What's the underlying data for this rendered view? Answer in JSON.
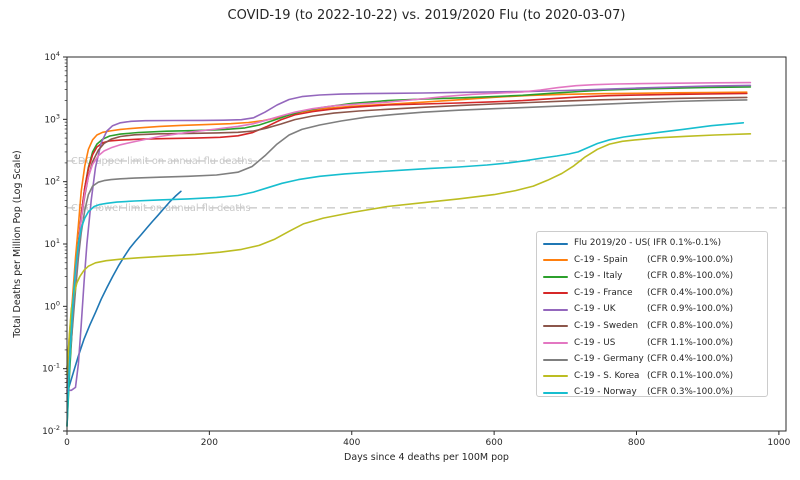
{
  "chart_data": {
    "type": "line",
    "title": "COVID-19 (to 2022-10-22) vs. 2019/2020 Flu (to 2020-03-07)",
    "xlabel": "Days since 4 deaths per 100M pop",
    "ylabel": "Total Deaths per Million Pop (Log Scale)",
    "grid": false,
    "legend_position": "lower right",
    "x_axis": {
      "min": 0,
      "max": 1010,
      "ticks": [
        0,
        200,
        400,
        600,
        800,
        1000
      ]
    },
    "y_axis": {
      "scale": "log",
      "min": 0.01,
      "max": 10000,
      "tick_exponents": [
        -2,
        -1,
        0,
        1,
        2,
        3,
        4
      ]
    },
    "annotations": [
      {
        "label": "CDC upper limit on annual flu deaths",
        "value": 215,
        "style": "dashed",
        "line_color": "#d2d2d2",
        "text_color": "#c9c9c9"
      },
      {
        "label": "CDC lower limit on annual flu deaths",
        "value": 38,
        "style": "dashed",
        "line_color": "#d2d2d2",
        "text_color": "#c9c9c9"
      }
    ],
    "series": [
      {
        "name": "Flu 2019/20 - US",
        "cfr": "( IFR 0.1%-0.1%)",
        "color": "#1f77b4",
        "x": [
          0,
          8,
          16,
          24,
          32,
          40,
          48,
          56,
          64,
          72,
          80,
          88,
          96,
          104,
          112,
          120,
          128,
          136,
          144,
          152,
          160
        ],
        "y": [
          0.04,
          0.08,
          0.16,
          0.3,
          0.5,
          0.8,
          1.3,
          2.0,
          3.0,
          4.4,
          6.2,
          8.5,
          11,
          14,
          18,
          23,
          29,
          37,
          47,
          58,
          70
        ]
      },
      {
        "name": "C-19 - Spain",
        "cfr": "(CFR 0.9%-100.0%)",
        "color": "#ff7f0e",
        "x": [
          0,
          4,
          8,
          12,
          16,
          20,
          25,
          30,
          36,
          42,
          50,
          60,
          75,
          100,
          130,
          160,
          200,
          230,
          255,
          275,
          295,
          315,
          335,
          360,
          400,
          450,
          500,
          550,
          600,
          650,
          700,
          750,
          800,
          850,
          900,
          955
        ],
        "y": [
          0.1,
          0.4,
          1.5,
          6,
          20,
          70,
          180,
          330,
          470,
          560,
          620,
          650,
          690,
          730,
          770,
          800,
          830,
          850,
          890,
          950,
          1060,
          1200,
          1340,
          1480,
          1620,
          1740,
          1880,
          2060,
          2260,
          2420,
          2520,
          2580,
          2620,
          2660,
          2690,
          2720
        ]
      },
      {
        "name": "C-19 - Italy",
        "cfr": "(CFR 0.8%-100.0%)",
        "color": "#2ca02c",
        "x": [
          0,
          4,
          8,
          12,
          16,
          20,
          25,
          30,
          36,
          42,
          50,
          60,
          75,
          100,
          140,
          180,
          220,
          250,
          270,
          290,
          310,
          330,
          360,
          400,
          450,
          500,
          550,
          600,
          640,
          680,
          720,
          760,
          800,
          850,
          900,
          960
        ],
        "y": [
          0.012,
          0.1,
          0.6,
          2.5,
          9,
          28,
          80,
          170,
          300,
          400,
          480,
          540,
          580,
          615,
          645,
          660,
          685,
          730,
          810,
          960,
          1150,
          1350,
          1560,
          1800,
          2000,
          2110,
          2210,
          2320,
          2430,
          2620,
          2800,
          2950,
          3060,
          3160,
          3250,
          3310
        ]
      },
      {
        "name": "C-19 - France",
        "cfr": "(CFR 0.4%-100.0%)",
        "color": "#d62728",
        "x": [
          0,
          4,
          8,
          12,
          16,
          20,
          25,
          30,
          36,
          42,
          50,
          60,
          75,
          100,
          140,
          180,
          215,
          240,
          260,
          280,
          300,
          320,
          345,
          370,
          400,
          450,
          500,
          550,
          600,
          640,
          680,
          720,
          760,
          800,
          850,
          900,
          955
        ],
        "y": [
          0.06,
          0.2,
          0.8,
          3,
          10,
          30,
          80,
          160,
          270,
          360,
          420,
          450,
          465,
          480,
          490,
          500,
          515,
          545,
          610,
          760,
          980,
          1180,
          1330,
          1450,
          1560,
          1700,
          1760,
          1830,
          1910,
          2000,
          2140,
          2290,
          2390,
          2450,
          2510,
          2560,
          2600
        ]
      },
      {
        "name": "C-19 - UK",
        "cfr": "(CFR 0.9%-100.0%)",
        "color": "#9467bd",
        "x": [
          0,
          6,
          12,
          16,
          20,
          24,
          28,
          34,
          40,
          48,
          56,
          64,
          75,
          90,
          110,
          150,
          190,
          220,
          245,
          262,
          278,
          295,
          312,
          330,
          355,
          385,
          420,
          460,
          500,
          550,
          600,
          650,
          700,
          750,
          800,
          850,
          900,
          960
        ],
        "y": [
          0.045,
          0.045,
          0.05,
          0.12,
          0.5,
          2.5,
          10,
          50,
          170,
          420,
          650,
          790,
          880,
          930,
          950,
          958,
          962,
          968,
          985,
          1060,
          1300,
          1700,
          2080,
          2320,
          2460,
          2540,
          2590,
          2620,
          2650,
          2700,
          2750,
          2810,
          2900,
          3030,
          3170,
          3300,
          3410,
          3500
        ]
      },
      {
        "name": "C-19 - Sweden",
        "cfr": "(CFR 0.8%-100.0%)",
        "color": "#8c564b",
        "x": [
          0,
          4,
          8,
          12,
          16,
          20,
          25,
          30,
          36,
          44,
          52,
          62,
          75,
          95,
          130,
          170,
          210,
          240,
          262,
          280,
          300,
          320,
          345,
          375,
          410,
          450,
          500,
          550,
          600,
          650,
          700,
          750,
          800,
          850,
          900,
          955
        ],
        "y": [
          0.1,
          0.3,
          1,
          3.5,
          10,
          25,
          60,
          120,
          210,
          320,
          410,
          480,
          530,
          565,
          585,
          595,
          605,
          620,
          650,
          720,
          840,
          990,
          1130,
          1260,
          1360,
          1450,
          1560,
          1660,
          1760,
          1860,
          1960,
          2060,
          2120,
          2170,
          2210,
          2250
        ]
      },
      {
        "name": "C-19 - US",
        "cfr": "(CFR 1.1%-100.0%)",
        "color": "#e377c2",
        "x": [
          0,
          4,
          8,
          12,
          16,
          20,
          25,
          30,
          36,
          44,
          52,
          62,
          75,
          95,
          130,
          170,
          210,
          240,
          262,
          280,
          300,
          320,
          345,
          375,
          410,
          450,
          490,
          530,
          570,
          610,
          640,
          665,
          690,
          715,
          740,
          770,
          810,
          860,
          910,
          960
        ],
        "y": [
          0.04,
          0.15,
          0.6,
          2.5,
          9,
          25,
          65,
          120,
          190,
          260,
          310,
          350,
          390,
          440,
          530,
          620,
          700,
          770,
          850,
          970,
          1130,
          1300,
          1480,
          1650,
          1760,
          1880,
          2080,
          2320,
          2520,
          2650,
          2760,
          2950,
          3230,
          3460,
          3600,
          3690,
          3750,
          3800,
          3850,
          3890
        ]
      },
      {
        "name": "C-19 - Germany",
        "cfr": "(CFR 0.4%-100.0%)",
        "color": "#7f7f7f",
        "x": [
          0,
          4,
          8,
          12,
          16,
          20,
          25,
          30,
          36,
          44,
          52,
          62,
          75,
          95,
          130,
          170,
          210,
          240,
          260,
          278,
          295,
          312,
          330,
          355,
          385,
          420,
          460,
          500,
          550,
          600,
          650,
          700,
          750,
          800,
          850,
          900,
          955
        ],
        "y": [
          0.05,
          0.15,
          0.5,
          1.8,
          6,
          15,
          35,
          62,
          85,
          98,
          104,
          108,
          111,
          114,
          118,
          122,
          128,
          142,
          175,
          260,
          400,
          560,
          690,
          810,
          940,
          1080,
          1200,
          1300,
          1400,
          1480,
          1560,
          1650,
          1740,
          1840,
          1930,
          2000,
          2050
        ]
      },
      {
        "name": "C-19 - S. Korea",
        "cfr": "(CFR 0.1%-100.0%)",
        "color": "#bcbd22",
        "x": [
          0,
          3,
          6,
          10,
          14,
          18,
          24,
          30,
          40,
          55,
          75,
          100,
          140,
          180,
          215,
          245,
          270,
          292,
          312,
          332,
          360,
          400,
          450,
          500,
          550,
          600,
          630,
          655,
          675,
          695,
          712,
          728,
          745,
          762,
          780,
          800,
          830,
          870,
          910,
          960
        ],
        "y": [
          0.08,
          0.3,
          0.9,
          1.6,
          2.4,
          3.0,
          3.8,
          4.4,
          5.0,
          5.4,
          5.7,
          6.0,
          6.4,
          6.8,
          7.4,
          8.2,
          9.5,
          12,
          16,
          21,
          26,
          32,
          40,
          46,
          53,
          62,
          72,
          85,
          105,
          135,
          180,
          250,
          330,
          400,
          445,
          470,
          505,
          535,
          560,
          585
        ]
      },
      {
        "name": "C-19 - Norway",
        "cfr": "(CFR 0.3%-100.0%)",
        "color": "#17becf",
        "x": [
          0,
          4,
          8,
          12,
          16,
          20,
          25,
          30,
          38,
          46,
          56,
          70,
          95,
          130,
          170,
          210,
          240,
          262,
          282,
          302,
          325,
          355,
          390,
          430,
          470,
          510,
          550,
          590,
          620,
          645,
          668,
          688,
          705,
          718,
          730,
          745,
          762,
          782,
          805,
          835,
          865,
          905,
          950
        ],
        "y": [
          0.012,
          0.15,
          1,
          4,
          10,
          18,
          26,
          33,
          40,
          43,
          45,
          47,
          49,
          51,
          53,
          56,
          60,
          68,
          80,
          94,
          108,
          122,
          133,
          143,
          153,
          163,
          172,
          185,
          200,
          218,
          240,
          258,
          278,
          300,
          345,
          410,
          470,
          520,
          565,
          625,
          690,
          790,
          880
        ]
      }
    ]
  }
}
